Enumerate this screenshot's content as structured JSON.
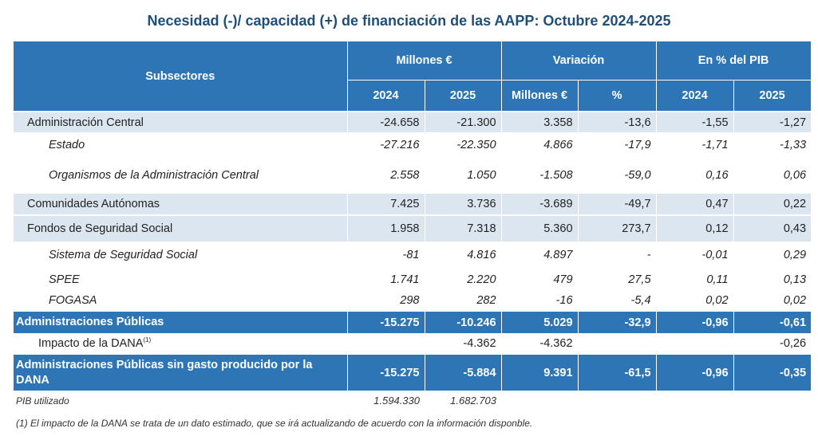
{
  "title": "Necesidad (-)/ capacidad (+) de financiación de las AAPP:  Octubre 2024-2025",
  "header": {
    "subsectores": "Subsectores",
    "groups": [
      "Millones €",
      "Variación",
      "En % del PIB"
    ],
    "subcols": [
      "2024",
      "2025",
      "Millones €",
      "%",
      "2024",
      "2025"
    ]
  },
  "rows": [
    {
      "label": "Administración Central",
      "values": [
        "-24.658",
        "-21.300",
        "3.358",
        "-13,6",
        "-1,55",
        "-1,27"
      ]
    },
    {
      "label": "Estado",
      "values": [
        "-27.216",
        "-22.350",
        "4.866",
        "-17,9",
        "-1,71",
        "-1,33"
      ]
    },
    {
      "label": "Organismos de la Administración Central",
      "values": [
        "2.558",
        "1.050",
        "-1.508",
        "-59,0",
        "0,16",
        "0,06"
      ]
    },
    {
      "label": "Comunidades Autónomas",
      "values": [
        "7.425",
        "3.736",
        "-3.689",
        "-49,7",
        "0,47",
        "0,22"
      ]
    },
    {
      "label": "Fondos de Seguridad Social",
      "values": [
        "1.958",
        "7.318",
        "5.360",
        "273,7",
        "0,12",
        "0,43"
      ]
    },
    {
      "label": "Sistema de Seguridad Social",
      "values": [
        "-81",
        "4.816",
        "4.897",
        "-",
        "-0,01",
        "0,29"
      ]
    },
    {
      "label": "SPEE",
      "values": [
        "1.741",
        "2.220",
        "479",
        "27,5",
        "0,11",
        "0,13"
      ]
    },
    {
      "label": "FOGASA",
      "values": [
        "298",
        "282",
        "-16",
        "-5,4",
        "0,02",
        "0,02"
      ]
    },
    {
      "label": "Administraciones Públicas",
      "values": [
        "-15.275",
        "-10.246",
        "5.029",
        "-32,9",
        "-0,96",
        "-0,61"
      ]
    },
    {
      "label": "Impacto de la DANA",
      "sup": "(1)",
      "values": [
        "",
        "-4.362",
        "-4.362",
        "",
        "",
        "-0,26"
      ]
    },
    {
      "label": "Administraciones Públicas sin gasto producido por la DANA",
      "values": [
        "-15.275",
        "-5.884",
        "9.391",
        "-61,5",
        "-0,96",
        "-0,35"
      ]
    },
    {
      "label": "PIB utilizado",
      "values": [
        "1.594.330",
        "1.682.703"
      ]
    }
  ],
  "footnote": "(1) El impacto de la DANA se trata de un dato estimado, que se irá actualizando de acuerdo con la información disponble.",
  "colors": {
    "header_blue": "#2e75b6",
    "row_light": "#dce6f1",
    "title": "#1f4e79"
  }
}
